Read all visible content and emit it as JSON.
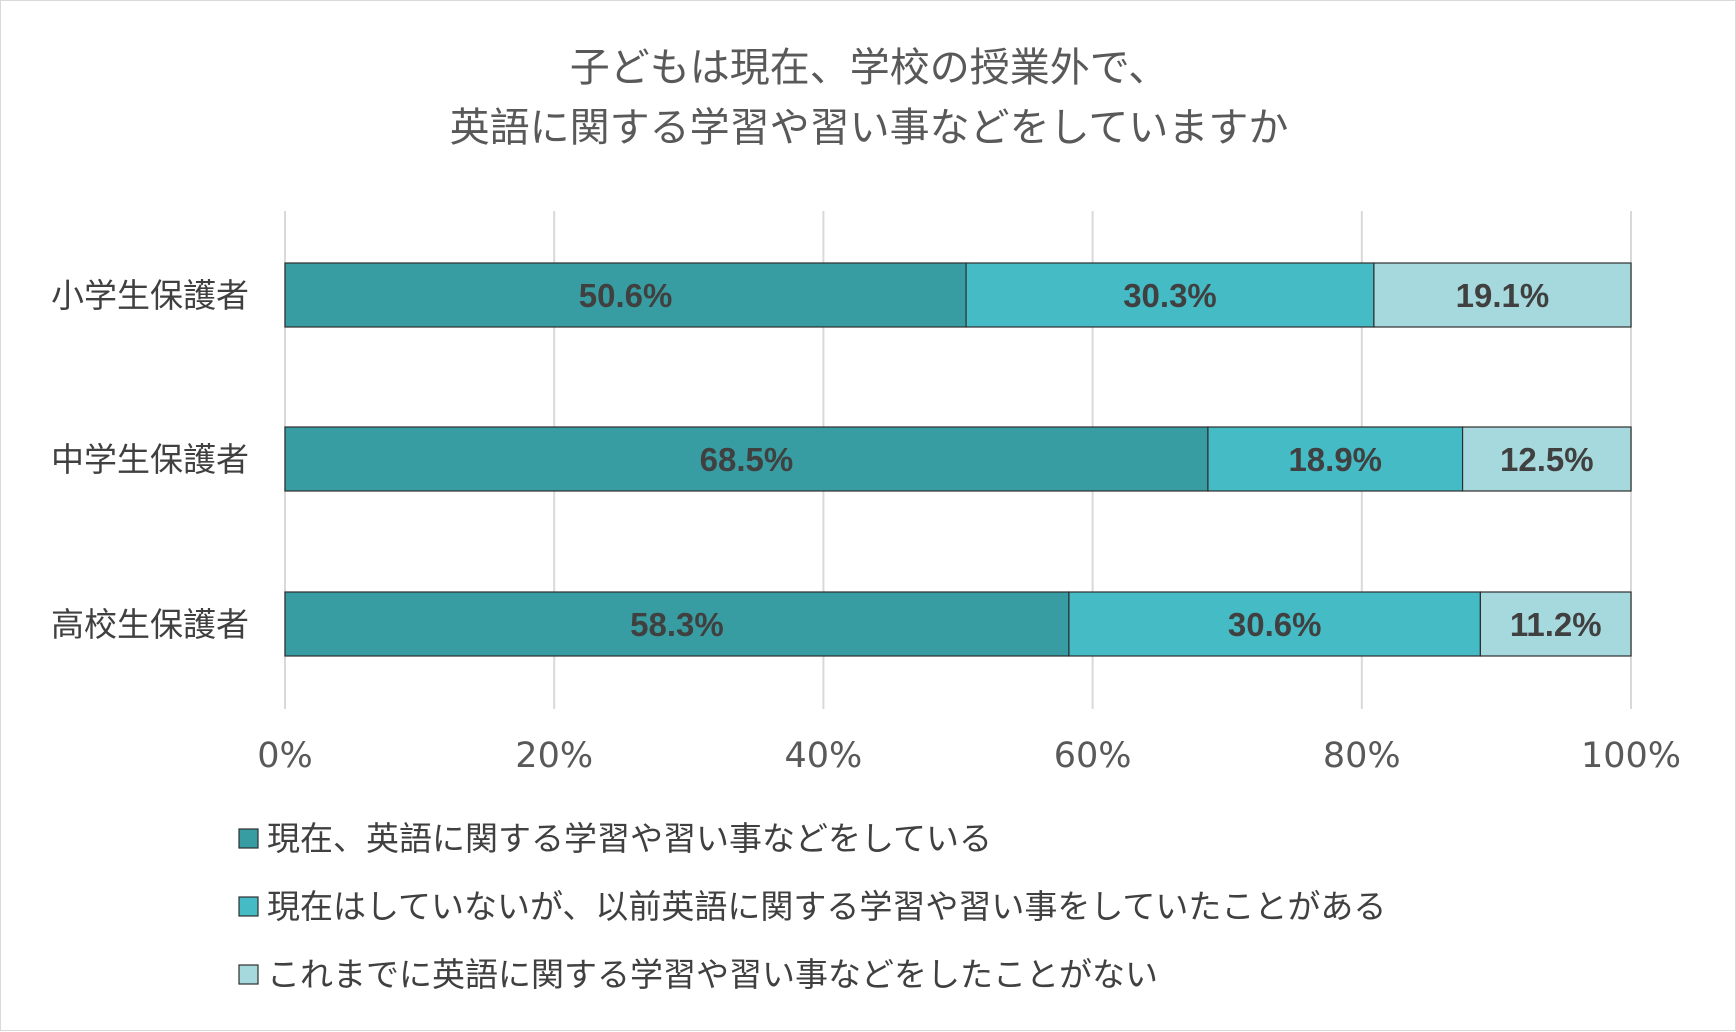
{
  "chart_data": {
    "type": "bar",
    "orientation": "horizontal",
    "stacked": "percent",
    "title": [
      "子どもは現在、学校の授業外で、",
      "英語に関する学習や習い事などをしていますか"
    ],
    "categories": [
      "小学生保護者",
      "中学生保護者",
      "高校生保護者"
    ],
    "series": [
      {
        "name": "現在、英語に関する学習や習い事などをしている",
        "values": [
          50.6,
          68.5,
          58.3
        ],
        "color": "#389da2"
      },
      {
        "name": "現在はしていないが、以前英語に関する学習や習い事をしていたことがある",
        "values": [
          30.3,
          18.9,
          30.6
        ],
        "color": "#45bbc5"
      },
      {
        "name": "これまでに英語に関する学習や習い事などをしたことがない",
        "values": [
          19.1,
          12.5,
          11.2
        ],
        "color": "#a6d9dd"
      }
    ],
    "value_suffix": "%",
    "xlim": [
      0,
      100
    ],
    "xticks": [
      "0%",
      "20%",
      "40%",
      "60%",
      "80%",
      "100%"
    ],
    "grid": true,
    "legend_position": "bottom"
  }
}
